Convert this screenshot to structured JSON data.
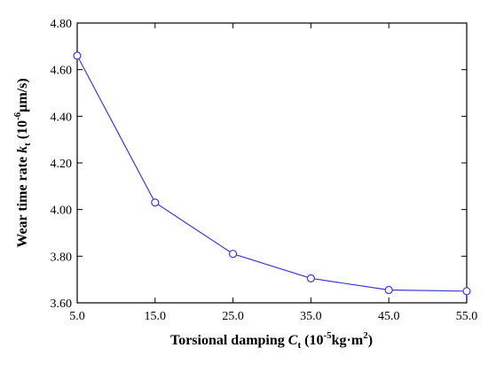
{
  "chart_data": {
    "type": "line",
    "title": "",
    "xlabel": {
      "main": "Torsional damping ",
      "var": "C",
      "sub": "t",
      "unit_open": " (10",
      "unit_exp": "-5",
      "unit_rest": "kg·m",
      "unit_exp2": "2",
      "unit_close": ")"
    },
    "ylabel": {
      "main": "Wear time rate ",
      "var": "k",
      "sub": "t",
      "unit_open": " (10",
      "unit_exp": "-6",
      "unit_rest": "μm/s)"
    },
    "x_ticks": [
      "5.0",
      "15.0",
      "25.0",
      "35.0",
      "45.0",
      "55.0"
    ],
    "x_tick_values": [
      5,
      15,
      25,
      35,
      45,
      55
    ],
    "y_ticks": [
      "3.60",
      "3.80",
      "4.00",
      "4.20",
      "4.40",
      "4.60",
      "4.80"
    ],
    "y_tick_values": [
      3.6,
      3.8,
      4.0,
      4.2,
      4.4,
      4.6,
      4.8
    ],
    "xlim": [
      5,
      55
    ],
    "ylim": [
      3.6,
      4.8
    ],
    "grid": false,
    "series": [
      {
        "x": [
          5,
          15,
          25,
          35,
          45,
          55
        ],
        "y": [
          4.66,
          4.03,
          3.81,
          3.705,
          3.655,
          3.65
        ],
        "color": "#3a3ad0",
        "marker": "open-circle"
      }
    ]
  }
}
